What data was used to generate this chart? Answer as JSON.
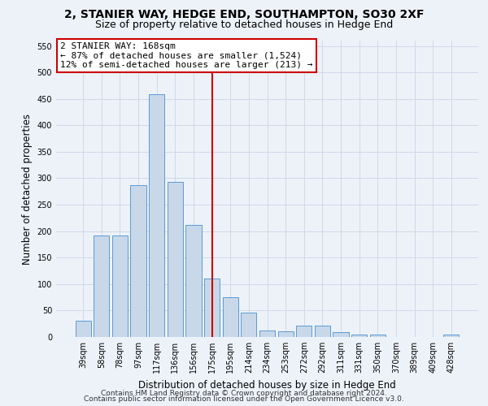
{
  "title": "2, STANIER WAY, HEDGE END, SOUTHAMPTON, SO30 2XF",
  "subtitle": "Size of property relative to detached houses in Hedge End",
  "xlabel": "Distribution of detached houses by size in Hedge End",
  "ylabel": "Number of detached properties",
  "categories": [
    "39sqm",
    "58sqm",
    "78sqm",
    "97sqm",
    "117sqm",
    "136sqm",
    "156sqm",
    "175sqm",
    "195sqm",
    "214sqm",
    "234sqm",
    "253sqm",
    "272sqm",
    "292sqm",
    "311sqm",
    "331sqm",
    "350sqm",
    "370sqm",
    "389sqm",
    "409sqm",
    "428sqm"
  ],
  "values": [
    30,
    192,
    192,
    287,
    459,
    293,
    212,
    110,
    75,
    46,
    13,
    11,
    22,
    22,
    9,
    5,
    5,
    0,
    0,
    0,
    5
  ],
  "bar_color": "#c8d8e8",
  "bar_edge_color": "#5b9bd5",
  "vline_x": 7,
  "vline_color": "#cc0000",
  "annotation_line1": "2 STANIER WAY: 168sqm",
  "annotation_line2": "← 87% of detached houses are smaller (1,524)",
  "annotation_line3": "12% of semi-detached houses are larger (213) →",
  "annotation_box_color": "#ffffff",
  "annotation_box_edge_color": "#cc0000",
  "ylim": [
    0,
    560
  ],
  "yticks": [
    0,
    50,
    100,
    150,
    200,
    250,
    300,
    350,
    400,
    450,
    500,
    550
  ],
  "grid_color": "#d0d8e8",
  "background_color": "#edf2f9",
  "footer_line1": "Contains HM Land Registry data © Crown copyright and database right 2024.",
  "footer_line2": "Contains public sector information licensed under the Open Government Licence v3.0.",
  "title_fontsize": 10,
  "subtitle_fontsize": 9,
  "xlabel_fontsize": 8.5,
  "ylabel_fontsize": 8.5,
  "tick_fontsize": 7,
  "annotation_fontsize": 8,
  "footer_fontsize": 6.5
}
